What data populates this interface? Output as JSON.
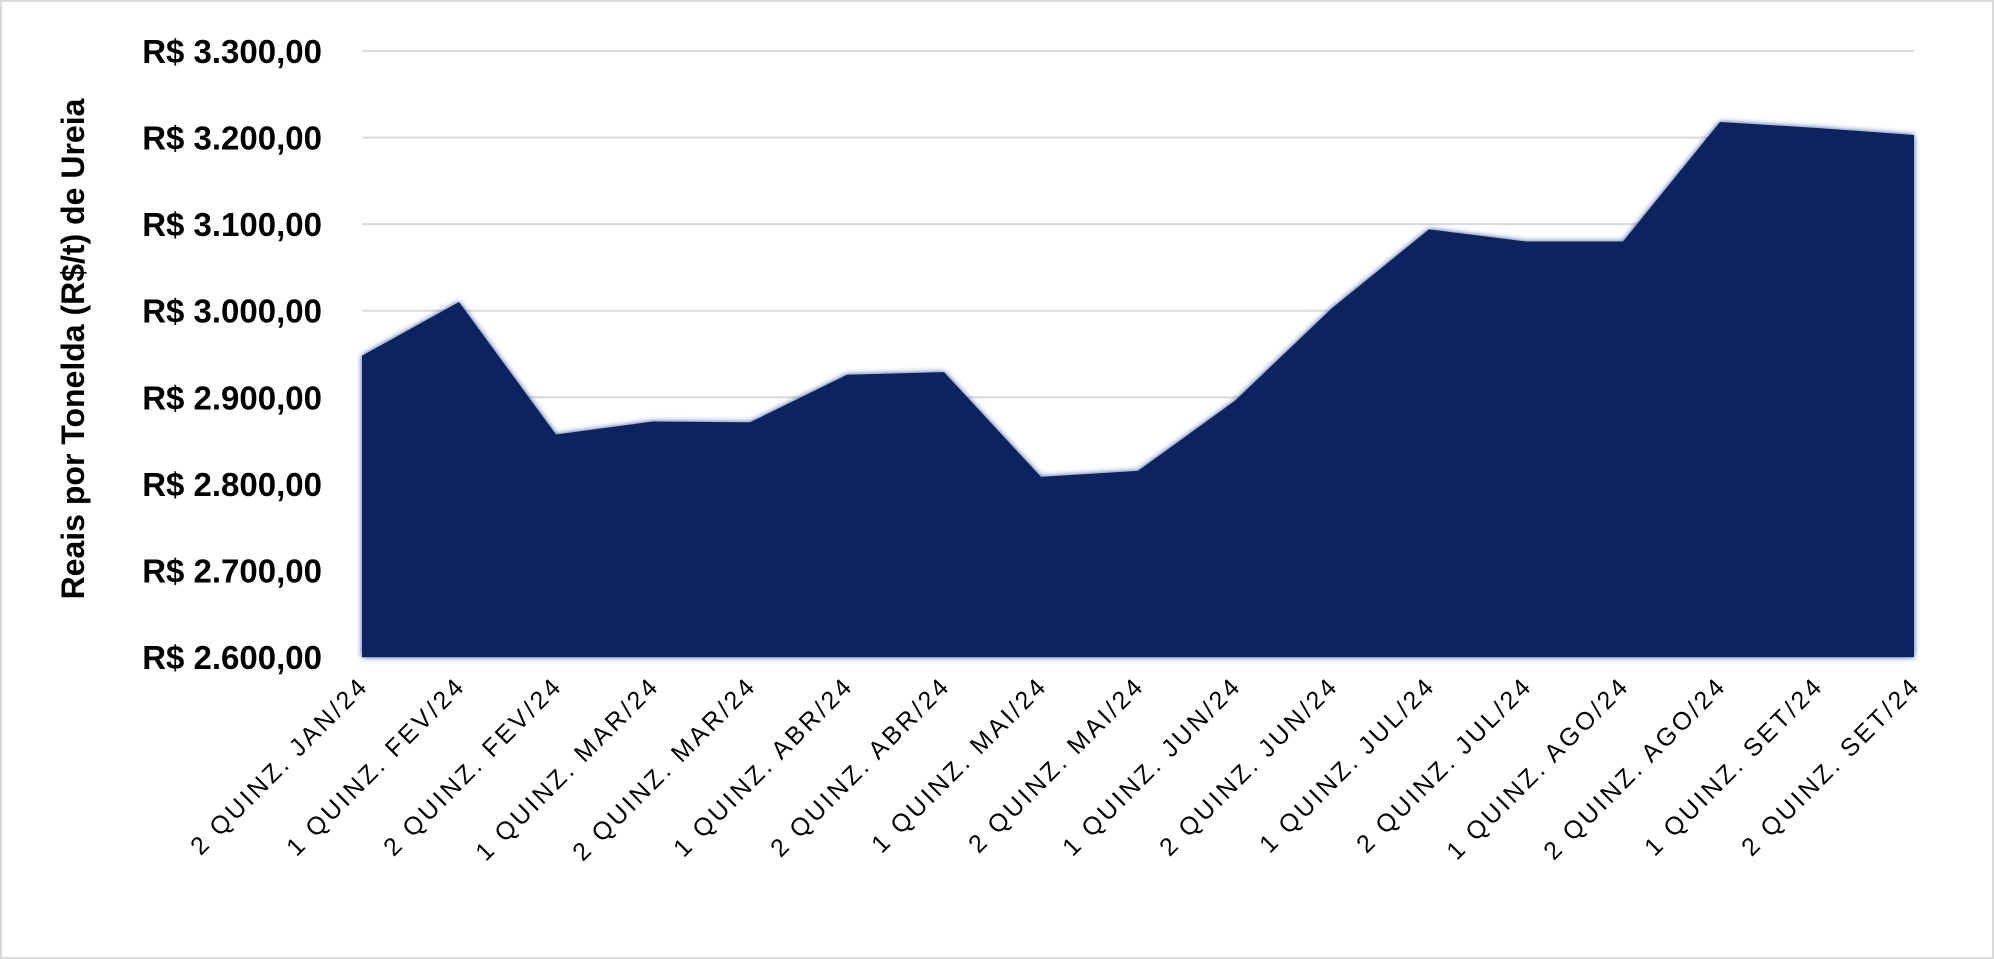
{
  "chart_data": {
    "type": "area",
    "title": "",
    "xlabel": "",
    "ylabel": "Reais por Tonelda (R$/t) de Ureia",
    "ylim": [
      2600,
      3300
    ],
    "grid": true,
    "legend": "none",
    "colors": {
      "fill": "#0a2160",
      "glow": "#2c4f9a",
      "grid": "#d9d9d9"
    },
    "y_tick_values": [
      2600,
      2700,
      2800,
      2900,
      3000,
      3100,
      3200,
      3300
    ],
    "y_tick_labels": [
      "R$ 2.600,00",
      "R$ 2.700,00",
      "R$ 2.800,00",
      "R$ 2.900,00",
      "R$ 3.000,00",
      "R$ 3.100,00",
      "R$ 3.200,00",
      "R$ 3.300,00"
    ],
    "categories": [
      "2 QUINZ. JAN/24",
      "1 QUINZ. FEV/24",
      "2 QUINZ. FEV/24",
      "1 QUINZ. MAR/24",
      "2 QUINZ. MAR/24",
      "1 QUINZ. ABR/24",
      "2 QUINZ. ABR/24",
      "1 QUINZ. MAI/24",
      "2 QUINZ. MAI/24",
      "1 QUINZ. JUN/24",
      "2 QUINZ. JUN/24",
      "1 QUINZ. JUL/24",
      "2 QUINZ. JUL/24",
      "1 QUINZ. AGO/24",
      "2 QUINZ. AGO/24",
      "1 QUINZ. SET/24",
      "2 QUINZ. SET/24"
    ],
    "values": [
      2948,
      3010,
      2857,
      2872,
      2871,
      2926,
      2929,
      2808,
      2815,
      2896,
      3003,
      3094,
      3080,
      3080,
      3218,
      3211,
      3203
    ]
  }
}
